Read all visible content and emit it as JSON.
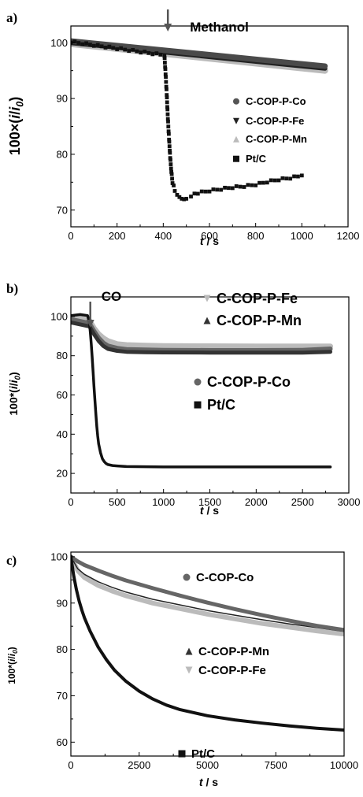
{
  "chart_data": [
    {
      "type": "scatter",
      "panel_label": "a)",
      "xlabel_var": "t",
      "xlabel_unit": " / s",
      "ylabel_pre": "100×(",
      "ylabel_i": "i",
      "ylabel_slash": "/",
      "ylabel_i0": "i",
      "ylabel_sub": "0",
      "ylabel_post": ")",
      "xlim": [
        0,
        1200
      ],
      "ylim": [
        67,
        103
      ],
      "xticks": [
        0,
        200,
        400,
        600,
        800,
        1000,
        1200
      ],
      "yticks": [
        70,
        80,
        90,
        100
      ],
      "annotation": {
        "text": "Methanol",
        "x": 420
      },
      "legend": [
        {
          "label": "C-COP-P-Co",
          "marker": "circle",
          "color": "#555555"
        },
        {
          "label": "C-COP-P-Fe",
          "marker": "triangle-down",
          "color": "#222222"
        },
        {
          "label": "C-COP-P-Mn",
          "marker": "triangle-up",
          "color": "#bbbbbb"
        },
        {
          "label": "Pt/C",
          "marker": "square",
          "color": "#111111"
        }
      ],
      "series": [
        {
          "name": "C-COP-P-Mn",
          "color": "#bbbbbb",
          "x": [
            0,
            1100
          ],
          "y": [
            99.8,
            95.0
          ]
        },
        {
          "name": "C-COP-P-Fe",
          "color": "#222222",
          "x": [
            0,
            1100
          ],
          "y": [
            100.0,
            95.4
          ]
        },
        {
          "name": "C-COP-P-Co",
          "color": "#4a4a4a",
          "x": [
            0,
            1100
          ],
          "y": [
            100.3,
            95.8
          ]
        },
        {
          "name": "Pt/C",
          "color": "#111111",
          "x": [
            0,
            200,
            405,
            410,
            415,
            420,
            425,
            430,
            435,
            440,
            450,
            460,
            470,
            480,
            490,
            500,
            520,
            550,
            600,
            650,
            700,
            750,
            800,
            850,
            900,
            950,
            1000
          ],
          "y": [
            100.2,
            99.0,
            97.8,
            94.5,
            90.8,
            86.5,
            82.8,
            79.5,
            77.0,
            75.0,
            73.6,
            72.9,
            72.5,
            72.2,
            72.1,
            72.2,
            72.6,
            73.1,
            73.5,
            73.8,
            74.1,
            74.3,
            74.6,
            75.1,
            75.5,
            75.8,
            76.2
          ]
        }
      ]
    },
    {
      "type": "scatter",
      "panel_label": "b)",
      "xlabel_var": "t",
      "xlabel_unit": " / s",
      "ylabel_pre": "100*(",
      "ylabel_i": "i",
      "ylabel_slash": "/",
      "ylabel_i0": "i",
      "ylabel_sub": "0",
      "ylabel_post": ")",
      "xlim": [
        0,
        3000
      ],
      "ylim": [
        10,
        110
      ],
      "xticks": [
        0,
        500,
        1000,
        1500,
        2000,
        2500,
        3000
      ],
      "yticks": [
        20,
        40,
        60,
        80,
        100
      ],
      "annotation": {
        "text": "CO",
        "x": 210
      },
      "legend": [
        {
          "label": "C-COP-P-Fe",
          "marker": "triangle-down",
          "color": "#bbbbbb"
        },
        {
          "label": "C-COP-P-Mn",
          "marker": "triangle-up",
          "color": "#333333"
        },
        {
          "label": "C-COP-P-Co",
          "marker": "circle",
          "color": "#666666"
        },
        {
          "label": "Pt/C",
          "marker": "square",
          "color": "#111111"
        }
      ],
      "series": [
        {
          "name": "C-COP-P-Fe",
          "color": "#bbbbbb",
          "x": [
            0,
            100,
            200,
            250,
            300,
            350,
            400,
            500,
            600,
            800,
            1000,
            1500,
            2000,
            2500,
            2800
          ],
          "y": [
            99.5,
            99.0,
            98.0,
            94.0,
            91.0,
            89.0,
            87.5,
            86.0,
            85.5,
            85.2,
            85.0,
            84.9,
            84.8,
            84.8,
            84.8
          ]
        },
        {
          "name": "C-COP-P-Co",
          "color": "#666666",
          "x": [
            0,
            100,
            200,
            250,
            300,
            350,
            400,
            500,
            600,
            800,
            1000,
            1500,
            2000,
            2500,
            2800
          ],
          "y": [
            98.5,
            97.5,
            96.5,
            92.5,
            89.0,
            86.5,
            85.0,
            83.8,
            83.2,
            83.0,
            82.8,
            82.7,
            82.7,
            82.8,
            83.5
          ]
        },
        {
          "name": "C-COP-P-Mn",
          "color": "#333333",
          "x": [
            0,
            100,
            200,
            250,
            300,
            350,
            400,
            500,
            600,
            800,
            1000,
            1500,
            2000,
            2500,
            2800
          ],
          "y": [
            97.0,
            96.0,
            95.0,
            91.0,
            87.5,
            85.0,
            83.5,
            82.5,
            82.0,
            81.8,
            81.7,
            81.6,
            81.6,
            81.6,
            82.0
          ]
        },
        {
          "name": "Pt/C",
          "color": "#111111",
          "x": [
            0,
            100,
            180,
            200,
            210,
            220,
            230,
            240,
            250,
            260,
            270,
            280,
            290,
            300,
            320,
            340,
            360,
            380,
            400,
            450,
            500,
            600,
            800,
            1000,
            1500,
            2000,
            2500,
            2800
          ],
          "y": [
            100.5,
            101.0,
            100.5,
            97.0,
            92.0,
            86.0,
            79.0,
            72.0,
            64.0,
            57.0,
            50.0,
            44.0,
            39.0,
            35.0,
            30.5,
            27.5,
            26.0,
            25.0,
            24.5,
            24.0,
            23.8,
            23.5,
            23.4,
            23.3,
            23.3,
            23.3,
            23.3,
            23.3
          ]
        }
      ]
    },
    {
      "type": "scatter",
      "panel_label": "c)",
      "xlabel_var": "t",
      "xlabel_unit": " / s",
      "ylabel_pre": "100*(",
      "ylabel_i": "i",
      "ylabel_slash": "/",
      "ylabel_i0": "i",
      "ylabel_sub": "0",
      "ylabel_post": ")",
      "xlim": [
        0,
        10000
      ],
      "ylim": [
        57,
        101
      ],
      "xticks": [
        0,
        2500,
        5000,
        7500,
        10000
      ],
      "yticks": [
        60,
        70,
        80,
        90,
        100
      ],
      "legend": [
        {
          "label": "C-COP-Co",
          "marker": "circle",
          "color": "#666666"
        },
        {
          "label": "C-COP-P-Mn",
          "marker": "triangle-up",
          "color": "#333333"
        },
        {
          "label": "C-COP-P-Fe",
          "marker": "triangle-down",
          "color": "#bbbbbb"
        },
        {
          "label": "Pt/C",
          "marker": "square",
          "color": "#111111"
        }
      ],
      "series": [
        {
          "name": "C-COP-P-Fe",
          "color": "#bbbbbb",
          "x": [
            0,
            250,
            500,
            1000,
            1500,
            2000,
            3000,
            4000,
            5000,
            6000,
            7000,
            8000,
            9000,
            10000
          ],
          "y": [
            100.0,
            97.0,
            95.5,
            93.8,
            92.6,
            91.6,
            90.0,
            88.8,
            87.6,
            86.6,
            85.6,
            84.8,
            84.0,
            83.3
          ]
        },
        {
          "name": "C-COP-P-Mn",
          "color": "#222222",
          "x": [
            0,
            250,
            500,
            1000,
            1500,
            2000,
            3000,
            4000,
            5000,
            6000,
            7000,
            8000,
            9000,
            10000
          ],
          "y": [
            100.0,
            97.4,
            96.2,
            94.6,
            93.4,
            92.4,
            90.8,
            89.6,
            88.4,
            87.4,
            86.4,
            85.5,
            84.7,
            83.9
          ]
        },
        {
          "name": "C-COP-Co",
          "color": "#666666",
          "x": [
            0,
            250,
            500,
            1000,
            1500,
            2000,
            3000,
            4000,
            5000,
            6000,
            7000,
            8000,
            9000,
            10000
          ],
          "y": [
            100.0,
            99.0,
            98.2,
            97.0,
            95.9,
            94.9,
            93.2,
            91.6,
            90.1,
            88.7,
            87.4,
            86.2,
            85.1,
            84.2
          ]
        },
        {
          "name": "Pt/C",
          "color": "#111111",
          "x": [
            0,
            100,
            200,
            300,
            400,
            500,
            700,
            1000,
            1300,
            1600,
            2000,
            2500,
            3000,
            3500,
            4000,
            5000,
            6000,
            7000,
            8000,
            9000,
            10000
          ],
          "y": [
            100.0,
            96.0,
            93.0,
            90.5,
            88.5,
            86.8,
            84.0,
            80.5,
            77.8,
            75.5,
            73.2,
            71.0,
            69.3,
            68.0,
            67.0,
            65.7,
            64.8,
            64.1,
            63.5,
            63.0,
            62.6
          ]
        }
      ]
    }
  ]
}
